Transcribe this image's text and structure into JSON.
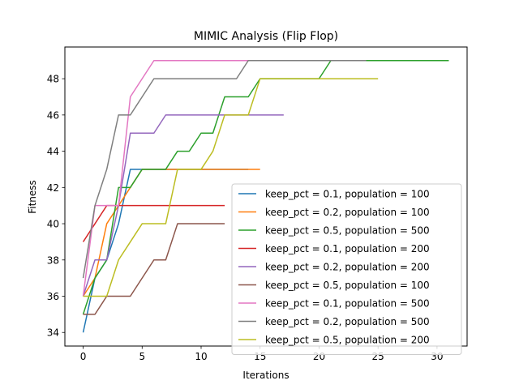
{
  "chart_data": {
    "type": "line",
    "title": "MIMIC Analysis (Flip Flop)",
    "xlabel": "Iterations",
    "ylabel": "Fitness",
    "xlim": [
      -1.55,
      32.55
    ],
    "ylim": [
      33.25,
      49.75
    ],
    "xticks": [
      0,
      5,
      10,
      15,
      20,
      25,
      30
    ],
    "yticks": [
      34,
      36,
      38,
      40,
      42,
      44,
      46,
      48
    ],
    "grid": false,
    "legend_position": "lower-right",
    "series": [
      {
        "name": "keep_pct = 0.1, population = 100",
        "color": "#1f77b4",
        "x": [
          0,
          1,
          2,
          3,
          4,
          5,
          6,
          7,
          8,
          9,
          10,
          11,
          12,
          13,
          14
        ],
        "y": [
          34,
          37,
          38,
          40,
          43,
          43,
          43,
          43,
          43,
          43,
          43,
          43,
          43,
          43,
          43
        ]
      },
      {
        "name": "keep_pct = 0.2, population = 100",
        "color": "#ff7f0e",
        "x": [
          0,
          1,
          2,
          3,
          4,
          5,
          6,
          7,
          8,
          9,
          10,
          11,
          12,
          13,
          14,
          15
        ],
        "y": [
          36,
          37,
          40,
          41,
          42,
          43,
          43,
          43,
          43,
          43,
          43,
          43,
          43,
          43,
          43,
          43
        ]
      },
      {
        "name": "keep_pct = 0.5, population = 500",
        "color": "#2ca02c",
        "x": [
          0,
          1,
          2,
          3,
          4,
          5,
          6,
          7,
          8,
          9,
          10,
          11,
          12,
          13,
          14,
          15,
          16,
          17,
          18,
          19,
          20,
          21,
          22,
          23,
          24,
          25,
          26,
          27,
          28,
          29,
          30,
          31
        ],
        "y": [
          35,
          37,
          38,
          42,
          42,
          43,
          43,
          43,
          44,
          44,
          45,
          45,
          47,
          47,
          47,
          48,
          48,
          48,
          48,
          48,
          48,
          49,
          49,
          49,
          49,
          49,
          49,
          49,
          49,
          49,
          49,
          49
        ]
      },
      {
        "name": "keep_pct = 0.1, population = 200",
        "color": "#d62728",
        "x": [
          0,
          1,
          2,
          3,
          4,
          5,
          6,
          7,
          8,
          9,
          10,
          11,
          12
        ],
        "y": [
          39,
          40,
          41,
          41,
          41,
          41,
          41,
          41,
          41,
          41,
          41,
          41,
          41
        ]
      },
      {
        "name": "keep_pct = 0.2, population = 200",
        "color": "#9467bd",
        "x": [
          0,
          1,
          2,
          3,
          4,
          5,
          6,
          7,
          8,
          9,
          10,
          11,
          12,
          13,
          14,
          15,
          16,
          17
        ],
        "y": [
          36,
          38,
          38,
          41,
          45,
          45,
          45,
          46,
          46,
          46,
          46,
          46,
          46,
          46,
          46,
          46,
          46,
          46
        ]
      },
      {
        "name": "keep_pct = 0.5, population = 100",
        "color": "#8c564b",
        "x": [
          0,
          1,
          2,
          3,
          4,
          5,
          6,
          7,
          8,
          9,
          10,
          11,
          12
        ],
        "y": [
          35,
          35,
          36,
          36,
          36,
          37,
          38,
          38,
          40,
          40,
          40,
          40,
          40
        ]
      },
      {
        "name": "keep_pct = 0.1, population = 500",
        "color": "#e377c2",
        "x": [
          0,
          1,
          2,
          3,
          4,
          5,
          6,
          7,
          8,
          9,
          10,
          11,
          12,
          13,
          14,
          15
        ],
        "y": [
          36,
          41,
          41,
          41,
          47,
          48,
          49,
          49,
          49,
          49,
          49,
          49,
          49,
          49,
          49,
          49
        ]
      },
      {
        "name": "keep_pct = 0.2, population = 500",
        "color": "#7f7f7f",
        "x": [
          0,
          1,
          2,
          3,
          4,
          5,
          6,
          7,
          8,
          9,
          10,
          11,
          12,
          13,
          14,
          15,
          16,
          17,
          18,
          19,
          20,
          21,
          22,
          23,
          24
        ],
        "y": [
          37,
          41,
          43,
          46,
          46,
          47,
          48,
          48,
          48,
          48,
          48,
          48,
          48,
          48,
          49,
          49,
          49,
          49,
          49,
          49,
          49,
          49,
          49,
          49,
          49
        ]
      },
      {
        "name": "keep_pct = 0.5, population = 200",
        "color": "#bcbd22",
        "x": [
          0,
          1,
          2,
          3,
          4,
          5,
          6,
          7,
          8,
          9,
          10,
          11,
          12,
          13,
          14,
          15,
          16,
          17,
          18,
          19,
          20,
          21,
          22,
          23,
          24,
          25
        ],
        "y": [
          36,
          36,
          36,
          38,
          39,
          40,
          40,
          40,
          43,
          43,
          43,
          44,
          46,
          46,
          46,
          48,
          48,
          48,
          48,
          48,
          48,
          48,
          48,
          48,
          48,
          48
        ]
      }
    ]
  }
}
